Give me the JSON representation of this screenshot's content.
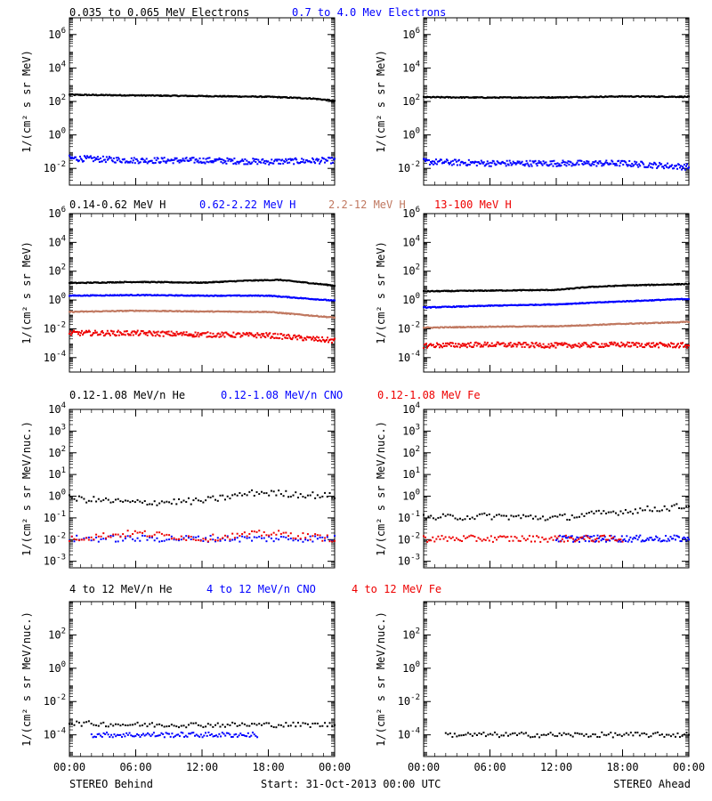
{
  "colors": {
    "black": "#000000",
    "blue": "#0000ff",
    "brown": "#c07860",
    "red": "#ee0000"
  },
  "row_titles": [
    [
      {
        "text": "0.035 to 0.065 MeV Electrons",
        "color": "#000000"
      },
      {
        "text": "0.7 to 4.0 Mev Electrons",
        "color": "#0000ff"
      }
    ],
    [
      {
        "text": "0.14-0.62 MeV H",
        "color": "#000000"
      },
      {
        "text": "0.62-2.22 MeV H",
        "color": "#0000ff"
      },
      {
        "text": "2.2-12 MeV H",
        "color": "#c07860"
      },
      {
        "text": "13-100 MeV H",
        "color": "#ee0000"
      }
    ],
    [
      {
        "text": "0.12-1.08 MeV/n He",
        "color": "#000000"
      },
      {
        "text": "0.12-1.08 MeV/n CNO",
        "color": "#0000ff"
      },
      {
        "text": "0.12-1.08 MeV Fe",
        "color": "#ee0000"
      }
    ],
    [
      {
        "text": "4 to 12 MeV/n He",
        "color": "#000000"
      },
      {
        "text": "4 to 12 MeV/n CNO",
        "color": "#0000ff"
      },
      {
        "text": "4 to 12 MeV Fe",
        "color": "#ee0000"
      }
    ]
  ],
  "x_tick_labels": [
    "00:00",
    "06:00",
    "12:00",
    "18:00",
    "00:00"
  ],
  "footer": {
    "left": "STEREO Behind",
    "center": "Start: 31-Oct-2013 00:00 UTC",
    "right": "STEREO Ahead"
  },
  "chart_data": [
    {
      "type": "scatter",
      "panel": "Behind electrons",
      "ylabel": "1/(cm² s sr MeV)",
      "yscale": "log",
      "ylim": [
        0.001,
        10000000
      ],
      "yticks": [
        "10^6",
        "10^4",
        "10^2",
        "10^0",
        "10^-2"
      ],
      "x_range_hours": [
        0,
        24
      ],
      "series": [
        {
          "color": "#000000",
          "values": [
            {
              "x": 0,
              "y": 250
            },
            {
              "x": 6,
              "y": 230
            },
            {
              "x": 12,
              "y": 210
            },
            {
              "x": 18,
              "y": 190
            },
            {
              "x": 22,
              "y": 150
            },
            {
              "x": 24,
              "y": 110
            }
          ]
        },
        {
          "color": "#0000ff",
          "values": [
            {
              "x": 0,
              "y": 0.04
            },
            {
              "x": 6,
              "y": 0.03
            },
            {
              "x": 12,
              "y": 0.03
            },
            {
              "x": 18,
              "y": 0.025
            },
            {
              "x": 24,
              "y": 0.03
            }
          ]
        }
      ]
    },
    {
      "type": "scatter",
      "panel": "Ahead electrons",
      "ylabel": "1/(cm² s sr MeV)",
      "yscale": "log",
      "ylim": [
        0.001,
        10000000
      ],
      "yticks": [
        "10^6",
        "10^4",
        "10^2",
        "10^0",
        "10^-2"
      ],
      "x_range_hours": [
        0,
        24
      ],
      "series": [
        {
          "color": "#000000",
          "values": [
            {
              "x": 0,
              "y": 180
            },
            {
              "x": 6,
              "y": 170
            },
            {
              "x": 12,
              "y": 175
            },
            {
              "x": 18,
              "y": 200
            },
            {
              "x": 24,
              "y": 190
            }
          ]
        },
        {
          "color": "#0000ff",
          "values": [
            {
              "x": 0,
              "y": 0.025
            },
            {
              "x": 6,
              "y": 0.02
            },
            {
              "x": 12,
              "y": 0.02
            },
            {
              "x": 18,
              "y": 0.02
            },
            {
              "x": 24,
              "y": 0.012
            }
          ]
        }
      ]
    },
    {
      "type": "scatter",
      "panel": "Behind protons",
      "ylabel": "1/(cm² s sr MeV)",
      "yscale": "log",
      "ylim": [
        1e-05,
        1000000
      ],
      "yticks": [
        "10^6",
        "10^4",
        "10^2",
        "10^0",
        "10^-2",
        "10^-4"
      ],
      "x_range_hours": [
        0,
        24
      ],
      "series": [
        {
          "color": "#000000",
          "values": [
            {
              "x": 0,
              "y": 15
            },
            {
              "x": 6,
              "y": 18
            },
            {
              "x": 12,
              "y": 16
            },
            {
              "x": 16,
              "y": 22
            },
            {
              "x": 19,
              "y": 25
            },
            {
              "x": 24,
              "y": 10
            }
          ]
        },
        {
          "color": "#0000ff",
          "values": [
            {
              "x": 0,
              "y": 2
            },
            {
              "x": 6,
              "y": 2.2
            },
            {
              "x": 12,
              "y": 2
            },
            {
              "x": 18,
              "y": 2
            },
            {
              "x": 24,
              "y": 0.9
            }
          ]
        },
        {
          "color": "#c07860",
          "values": [
            {
              "x": 0,
              "y": 0.15
            },
            {
              "x": 6,
              "y": 0.18
            },
            {
              "x": 12,
              "y": 0.16
            },
            {
              "x": 18,
              "y": 0.15
            },
            {
              "x": 24,
              "y": 0.06
            }
          ]
        },
        {
          "color": "#ee0000",
          "values": [
            {
              "x": 0,
              "y": 0.005
            },
            {
              "x": 6,
              "y": 0.005
            },
            {
              "x": 12,
              "y": 0.004
            },
            {
              "x": 18,
              "y": 0.0035
            },
            {
              "x": 24,
              "y": 0.0015
            }
          ]
        }
      ]
    },
    {
      "type": "scatter",
      "panel": "Ahead protons",
      "ylabel": "1/(cm² s sr MeV)",
      "yscale": "log",
      "ylim": [
        1e-05,
        1000000
      ],
      "yticks": [
        "10^6",
        "10^4",
        "10^2",
        "10^0",
        "10^-2",
        "10^-4"
      ],
      "x_range_hours": [
        0,
        24
      ],
      "series": [
        {
          "color": "#000000",
          "values": [
            {
              "x": 0,
              "y": 4
            },
            {
              "x": 6,
              "y": 4.5
            },
            {
              "x": 12,
              "y": 5
            },
            {
              "x": 15,
              "y": 8
            },
            {
              "x": 18,
              "y": 10
            },
            {
              "x": 24,
              "y": 13
            }
          ]
        },
        {
          "color": "#0000ff",
          "values": [
            {
              "x": 0,
              "y": 0.3
            },
            {
              "x": 6,
              "y": 0.4
            },
            {
              "x": 12,
              "y": 0.5
            },
            {
              "x": 18,
              "y": 0.8
            },
            {
              "x": 24,
              "y": 1.2
            }
          ]
        },
        {
          "color": "#c07860",
          "values": [
            {
              "x": 0,
              "y": 0.012
            },
            {
              "x": 6,
              "y": 0.014
            },
            {
              "x": 12,
              "y": 0.015
            },
            {
              "x": 18,
              "y": 0.022
            },
            {
              "x": 24,
              "y": 0.03
            }
          ]
        },
        {
          "color": "#ee0000",
          "values": [
            {
              "x": 0,
              "y": 0.0007
            },
            {
              "x": 6,
              "y": 0.0008
            },
            {
              "x": 12,
              "y": 0.0007
            },
            {
              "x": 18,
              "y": 0.0008
            },
            {
              "x": 24,
              "y": 0.0007
            }
          ]
        }
      ]
    },
    {
      "type": "scatter",
      "panel": "Behind He/CNO/Fe",
      "ylabel": "1/(cm² s sr MeV/nuc.)",
      "yscale": "log",
      "ylim": [
        0.0005,
        10000
      ],
      "yticks": [
        "10^4",
        "10^3",
        "10^2",
        "10^1",
        "10^0",
        "10^-1",
        "10^-2",
        "10^-3"
      ],
      "x_range_hours": [
        0,
        24
      ],
      "series": [
        {
          "color": "#000000",
          "values": [
            {
              "x": 0,
              "y": 0.8
            },
            {
              "x": 6,
              "y": 0.5
            },
            {
              "x": 12,
              "y": 0.6
            },
            {
              "x": 17,
              "y": 1.5
            },
            {
              "x": 24,
              "y": 1
            }
          ]
        },
        {
          "color": "#0000ff",
          "values": [
            {
              "x": 0,
              "y": 0.011
            },
            {
              "x": 6,
              "y": 0.011
            },
            {
              "x": 12,
              "y": 0.011
            },
            {
              "x": 18,
              "y": 0.011
            },
            {
              "x": 24,
              "y": 0.011
            }
          ]
        },
        {
          "color": "#ee0000",
          "values": [
            {
              "x": 0,
              "y": 0.011
            },
            {
              "x": 6,
              "y": 0.02
            },
            {
              "x": 12,
              "y": 0.011
            },
            {
              "x": 18,
              "y": 0.02
            },
            {
              "x": 24,
              "y": 0.011
            }
          ]
        }
      ]
    },
    {
      "type": "scatter",
      "panel": "Ahead He/CNO/Fe",
      "ylabel": "1/(cm² s sr MeV/nuc.)",
      "yscale": "log",
      "ylim": [
        0.0005,
        10000
      ],
      "yticks": [
        "10^4",
        "10^3",
        "10^2",
        "10^1",
        "10^0",
        "10^-1",
        "10^-2",
        "10^-3"
      ],
      "x_range_hours": [
        0,
        24
      ],
      "series": [
        {
          "color": "#000000",
          "values": [
            {
              "x": 0,
              "y": 0.1
            },
            {
              "x": 6,
              "y": 0.12
            },
            {
              "x": 12,
              "y": 0.1
            },
            {
              "x": 18,
              "y": 0.2
            },
            {
              "x": 24,
              "y": 0.35
            }
          ]
        },
        {
          "color": "#0000ff",
          "values": [
            {
              "x": 12,
              "y": 0.011
            },
            {
              "x": 18,
              "y": 0.011
            },
            {
              "x": 24,
              "y": 0.011
            }
          ]
        },
        {
          "color": "#ee0000",
          "values": [
            {
              "x": 0,
              "y": 0.011
            },
            {
              "x": 6,
              "y": 0.011
            },
            {
              "x": 12,
              "y": 0.011
            },
            {
              "x": 18,
              "y": 0.011
            }
          ]
        }
      ]
    },
    {
      "type": "scatter",
      "panel": "Behind 4-12 MeV/n",
      "ylabel": "1/(cm² s sr MeV/nuc.)",
      "yscale": "log",
      "ylim": [
        5e-06,
        10000
      ],
      "yticks": [
        "10^2",
        "10^0",
        "10^-2",
        "10^-4"
      ],
      "x_range_hours": [
        0,
        24
      ],
      "series": [
        {
          "color": "#000000",
          "values": [
            {
              "x": 0,
              "y": 0.0005
            },
            {
              "x": 6,
              "y": 0.0004
            },
            {
              "x": 12,
              "y": 0.0004
            },
            {
              "x": 18,
              "y": 0.0004
            },
            {
              "x": 24,
              "y": 0.0004
            }
          ]
        },
        {
          "color": "#0000ff",
          "values": [
            {
              "x": 2,
              "y": 0.0001
            },
            {
              "x": 8,
              "y": 0.0001
            },
            {
              "x": 17,
              "y": 0.0001
            }
          ]
        }
      ]
    },
    {
      "type": "scatter",
      "panel": "Ahead 4-12 MeV/n",
      "ylabel": "1/(cm² s sr MeV/nuc.)",
      "yscale": "log",
      "ylim": [
        5e-06,
        10000
      ],
      "yticks": [
        "10^2",
        "10^0",
        "10^-2",
        "10^-4"
      ],
      "x_range_hours": [
        0,
        24
      ],
      "series": [
        {
          "color": "#000000",
          "values": [
            {
              "x": 2,
              "y": 0.0001
            },
            {
              "x": 6,
              "y": 0.0001
            },
            {
              "x": 12,
              "y": 0.0001
            },
            {
              "x": 18,
              "y": 0.0001
            },
            {
              "x": 24,
              "y": 0.0001
            }
          ]
        }
      ]
    }
  ]
}
